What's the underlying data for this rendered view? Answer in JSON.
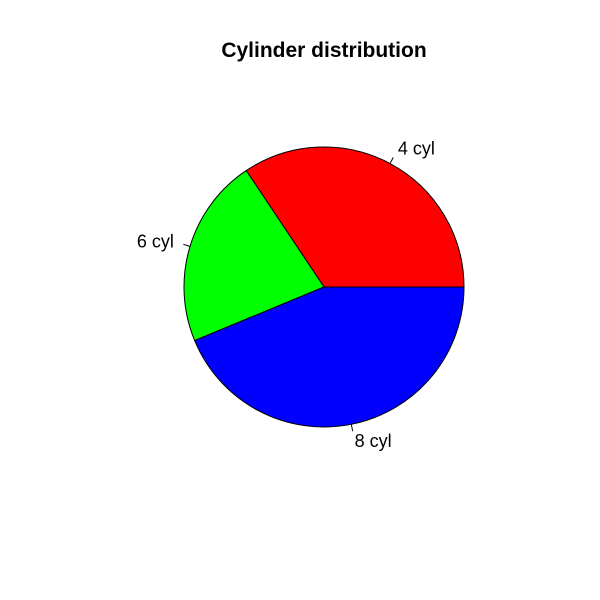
{
  "chart_data": {
    "type": "pie",
    "title": "Cylinder distribution",
    "labels": [
      "4 cyl",
      "6 cyl",
      "8 cyl"
    ],
    "values": [
      11,
      7,
      14
    ],
    "colors": [
      "#FF0000",
      "#00FF00",
      "#0000FF"
    ],
    "start_angle_deg": 0,
    "direction": "counterclockwise"
  }
}
